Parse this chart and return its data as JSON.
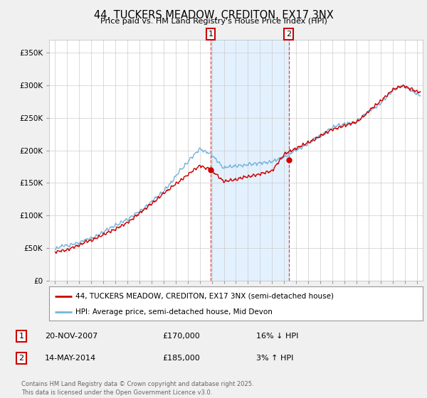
{
  "title": "44, TUCKERS MEADOW, CREDITON, EX17 3NX",
  "subtitle": "Price paid vs. HM Land Registry's House Price Index (HPI)",
  "ylim": [
    0,
    370000
  ],
  "xlim_start": 1994.5,
  "xlim_end": 2025.5,
  "hpi_color": "#7ab4d8",
  "price_color": "#cc0000",
  "vline_color": "#dd4444",
  "shade_color": "#ddeeff",
  "marker1_x": 2007.9,
  "marker2_x": 2014.37,
  "marker1_price": 170000,
  "marker2_price": 185000,
  "marker1_label": "20-NOV-2007",
  "marker2_label": "14-MAY-2014",
  "marker1_hpi": "16% ↓ HPI",
  "marker2_hpi": "3% ↑ HPI",
  "legend_line1": "44, TUCKERS MEADOW, CREDITON, EX17 3NX (semi-detached house)",
  "legend_line2": "HPI: Average price, semi-detached house, Mid Devon",
  "footnote": "Contains HM Land Registry data © Crown copyright and database right 2025.\nThis data is licensed under the Open Government Licence v3.0.",
  "background_color": "#f0f0f0",
  "plot_bg_color": "#ffffff",
  "grid_color": "#cccccc"
}
